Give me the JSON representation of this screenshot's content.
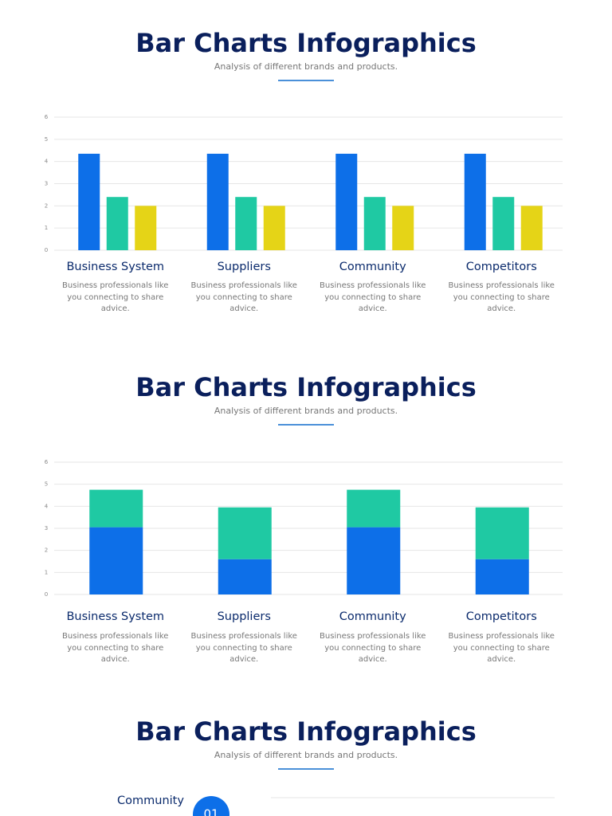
{
  "sections": [
    {
      "title": "Bar Charts Infographics",
      "subtitle": "Analysis of different brands and products."
    },
    {
      "title": "Bar Charts Infographics",
      "subtitle": "Analysis of different brands and products."
    },
    {
      "title": "Bar Charts Infographics",
      "subtitle": "Analysis of different brands and products."
    }
  ],
  "chart_data": [
    {
      "type": "bar",
      "categories": [
        "Business System",
        "Suppliers",
        "Community",
        "Competitors"
      ],
      "descriptions": [
        "Business professionals like you connecting to share advice.",
        "Business professionals like you connecting to share advice.",
        "Business professionals like you connecting to share advice.",
        "Business professionals like you connecting to share advice."
      ],
      "series": [
        {
          "color": "#0d6fe8",
          "values": [
            4.35,
            4.35,
            4.35,
            4.35
          ]
        },
        {
          "color": "#1fc9a3",
          "values": [
            2.4,
            2.4,
            2.4,
            2.4
          ]
        },
        {
          "color": "#e5d417",
          "values": [
            2.0,
            2.0,
            2.0,
            2.0
          ]
        }
      ],
      "ylim": [
        0,
        6
      ],
      "yticks": [
        0,
        1,
        2,
        3,
        4,
        5,
        6
      ],
      "grid": true
    },
    {
      "type": "stacked_bar",
      "categories": [
        "Business System",
        "Suppliers",
        "Community",
        "Competitors"
      ],
      "descriptions": [
        "Business professionals like you connecting to share advice.",
        "Business professionals like you connecting to share advice.",
        "Business professionals like you connecting to share advice.",
        "Business professionals like you connecting to share advice."
      ],
      "series": [
        {
          "color": "#0d6fe8",
          "values": [
            3.05,
            1.6,
            3.05,
            1.6
          ]
        },
        {
          "color": "#1fc9a3",
          "values": [
            1.7,
            2.35,
            1.7,
            2.35
          ]
        }
      ],
      "ylim": [
        0,
        6
      ],
      "yticks": [
        0,
        1,
        2,
        3,
        4,
        5,
        6
      ],
      "grid": true
    }
  ],
  "timeline": {
    "label": "Community",
    "number": "01"
  }
}
